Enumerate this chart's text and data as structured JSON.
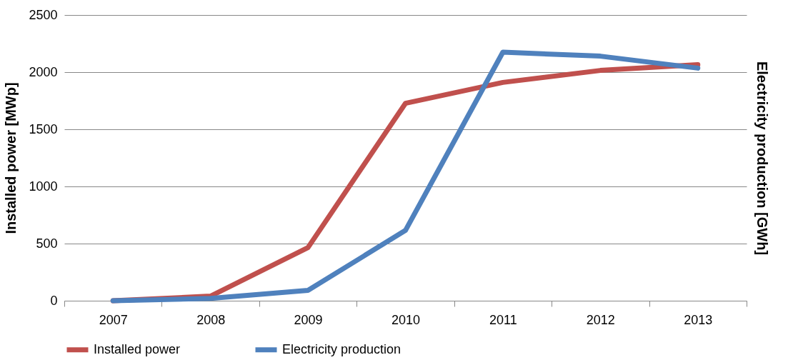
{
  "chart_data": {
    "type": "line",
    "ylabel": "Installed power [MWp]",
    "y2label": "Electricity production [GWh]",
    "categories": [
      "2007",
      "2008",
      "2009",
      "2010",
      "2011",
      "2012",
      "2013"
    ],
    "series": [
      {
        "name": "Installed power",
        "color": "#c0504d",
        "values": [
          0,
          40,
          465,
          1727,
          1910,
          2015,
          2065
        ]
      },
      {
        "name": "Electricity production",
        "color": "#4f81bd",
        "values": [
          0,
          20,
          90,
          615,
          2175,
          2140,
          2035
        ]
      }
    ],
    "ylim": [
      0,
      2500
    ],
    "yticks": [
      0,
      500,
      1000,
      1500,
      2000,
      2500
    ],
    "grid": "y",
    "legend": "bottom",
    "marker": "none",
    "line_style": "solid"
  }
}
